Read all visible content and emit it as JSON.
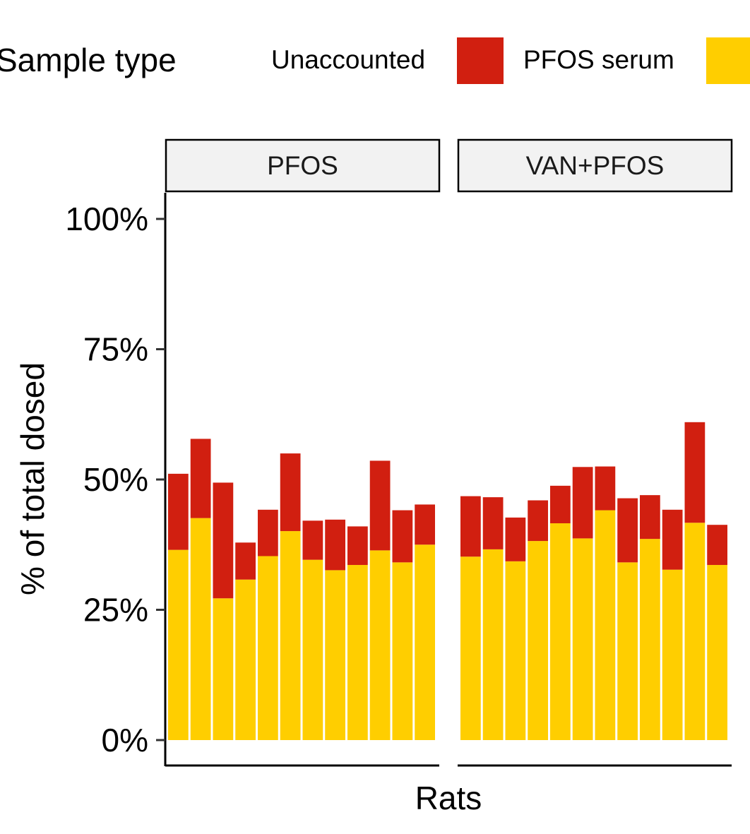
{
  "legend": {
    "title": "Sample type",
    "entries": [
      {
        "label": "Unaccounted",
        "color": "#D11F10"
      },
      {
        "label": "PFOS serum",
        "color": "#FFCE00"
      }
    ]
  },
  "chart_data": {
    "type": "bar",
    "stacked": true,
    "title": "",
    "xlabel": "Rats",
    "ylabel": "% of total dosed",
    "ylim": [
      0,
      100
    ],
    "yticks": [
      0,
      25,
      50,
      75,
      100
    ],
    "ytick_labels": [
      "0%",
      "25%",
      "50%",
      "75%",
      "100%"
    ],
    "legend_position": "top",
    "facets": [
      {
        "name": "PFOS",
        "series": [
          {
            "name": "PFOS serum",
            "color": "#FFCE00",
            "values": [
              36.5,
              42.6,
              27.2,
              30.8,
              35.3,
              40.1,
              34.6,
              32.6,
              33.6,
              36.4,
              34.1,
              37.5
            ]
          },
          {
            "name": "Unaccounted",
            "color": "#D11F10",
            "values": [
              14.6,
              15.2,
              22.2,
              7.1,
              8.9,
              14.9,
              7.5,
              9.7,
              7.4,
              17.2,
              10.0,
              7.7
            ]
          }
        ]
      },
      {
        "name": "VAN+PFOS",
        "series": [
          {
            "name": "PFOS serum",
            "color": "#FFCE00",
            "values": [
              35.2,
              36.6,
              34.3,
              38.2,
              41.6,
              38.7,
              44.1,
              34.1,
              38.6,
              32.7,
              41.7,
              33.6
            ]
          },
          {
            "name": "Unaccounted",
            "color": "#D11F10",
            "values": [
              11.6,
              10.0,
              8.4,
              7.8,
              7.2,
              13.7,
              8.4,
              12.3,
              8.4,
              11.5,
              19.3,
              7.7
            ]
          }
        ]
      }
    ]
  }
}
